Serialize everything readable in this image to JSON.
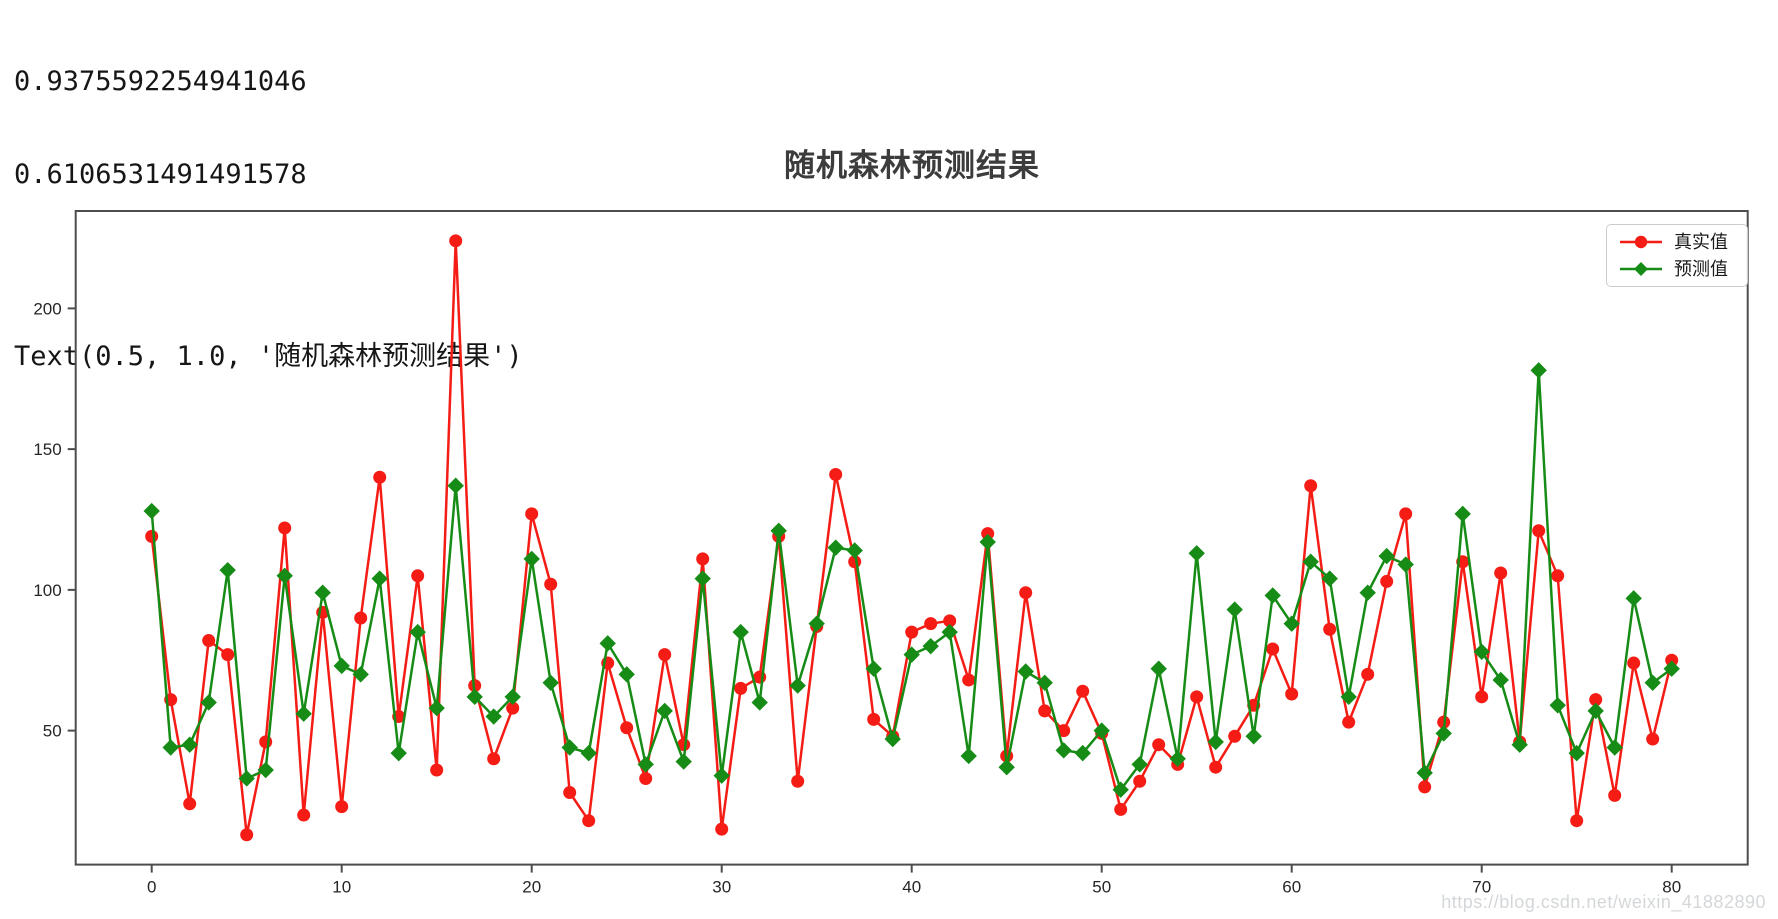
{
  "console_output": {
    "line1": "0.9375592254941046",
    "line2": "0.6106531491491578",
    "line3": "Text(0.5, 1.0, '随机森林预测结果')"
  },
  "chart": {
    "title": "随机森林预测结果",
    "legend": [
      {
        "label": "真实值",
        "color": "#f41c14",
        "marker": "circle"
      },
      {
        "label": "预测值",
        "color": "#168c16",
        "marker": "diamond"
      }
    ],
    "watermark": "https://blog.csdn.net/weixin_41882890",
    "spine_color": "#4d4d4d",
    "tick_label_color": "#262626"
  },
  "chart_data": {
    "type": "line",
    "title": "随机森林预测结果",
    "x": [
      0,
      1,
      2,
      3,
      4,
      5,
      6,
      7,
      8,
      9,
      10,
      11,
      12,
      13,
      14,
      15,
      16,
      17,
      18,
      19,
      20,
      21,
      22,
      23,
      24,
      25,
      26,
      27,
      28,
      29,
      30,
      31,
      32,
      33,
      34,
      35,
      36,
      37,
      38,
      39,
      40,
      41,
      42,
      43,
      44,
      45,
      46,
      47,
      48,
      49,
      50,
      51,
      52,
      53,
      54,
      55,
      56,
      57,
      58,
      59,
      60,
      61,
      62,
      63,
      64,
      65,
      66,
      67,
      68,
      69,
      70,
      71,
      72,
      73,
      74,
      75,
      76,
      77,
      78,
      79,
      80
    ],
    "series": [
      {
        "name": "真实值",
        "color": "#f41c14",
        "marker": "circle",
        "values": [
          119,
          61,
          24,
          82,
          77,
          13,
          46,
          122,
          20,
          92,
          23,
          90,
          140,
          55,
          105,
          36,
          224,
          66,
          40,
          58,
          127,
          102,
          28,
          18,
          74,
          51,
          33,
          77,
          45,
          111,
          15,
          65,
          69,
          119,
          32,
          87,
          141,
          110,
          54,
          48,
          85,
          88,
          89,
          68,
          120,
          41,
          99,
          57,
          50,
          64,
          49,
          22,
          32,
          45,
          38,
          62,
          37,
          48,
          59,
          79,
          63,
          137,
          86,
          53,
          70,
          103,
          127,
          30,
          53,
          110,
          62,
          106,
          46,
          121,
          105,
          18,
          61,
          27,
          74,
          47,
          75
        ]
      },
      {
        "name": "预测值",
        "color": "#168c16",
        "marker": "diamond",
        "values": [
          128,
          44,
          45,
          60,
          107,
          33,
          36,
          105,
          56,
          99,
          73,
          70,
          104,
          42,
          85,
          58,
          137,
          62,
          55,
          62,
          111,
          67,
          44,
          42,
          81,
          70,
          38,
          57,
          39,
          104,
          34,
          85,
          60,
          121,
          66,
          88,
          115,
          114,
          72,
          47,
          77,
          80,
          85,
          41,
          117,
          37,
          71,
          67,
          43,
          42,
          50,
          29,
          38,
          72,
          40,
          113,
          46,
          93,
          48,
          98,
          88,
          110,
          104,
          62,
          99,
          112,
          109,
          35,
          49,
          127,
          78,
          68,
          45,
          178,
          59,
          42,
          57,
          44,
          97,
          67,
          72
        ]
      }
    ],
    "x_ticks": [
      0,
      10,
      20,
      30,
      40,
      50,
      60,
      70,
      80
    ],
    "y_ticks": [
      50,
      100,
      150,
      200
    ],
    "xlim": [
      -4,
      84
    ],
    "ylim": [
      2.4,
      234.6
    ],
    "xlabel": "",
    "ylabel": "",
    "grid": false,
    "legend_position": "upper right"
  }
}
